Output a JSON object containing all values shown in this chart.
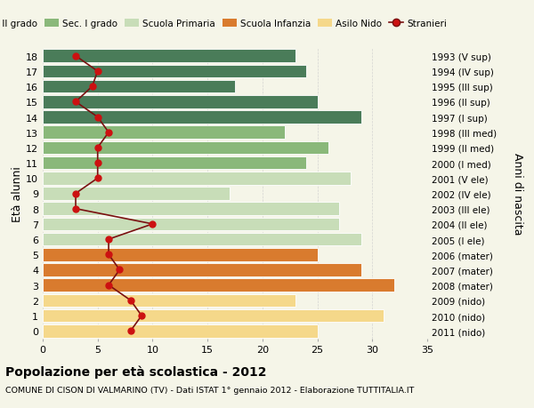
{
  "ages": [
    0,
    1,
    2,
    3,
    4,
    5,
    6,
    7,
    8,
    9,
    10,
    11,
    12,
    13,
    14,
    15,
    16,
    17,
    18
  ],
  "bar_values": [
    25,
    31,
    23,
    32,
    29,
    25,
    29,
    27,
    27,
    17,
    28,
    24,
    26,
    22,
    29,
    25,
    17.5,
    24,
    23
  ],
  "bar_colors": [
    "#f5d88a",
    "#f5d88a",
    "#f5d88a",
    "#d97b2e",
    "#d97b2e",
    "#d97b2e",
    "#c8ddb8",
    "#c8ddb8",
    "#c8ddb8",
    "#c8ddb8",
    "#c8ddb8",
    "#8ab87a",
    "#8ab87a",
    "#8ab87a",
    "#4a7c59",
    "#4a7c59",
    "#4a7c59",
    "#4a7c59",
    "#4a7c59"
  ],
  "right_labels": [
    "2011 (nido)",
    "2010 (nido)",
    "2009 (nido)",
    "2008 (mater)",
    "2007 (mater)",
    "2006 (mater)",
    "2005 (I ele)",
    "2004 (II ele)",
    "2003 (III ele)",
    "2002 (IV ele)",
    "2001 (V ele)",
    "2000 (I med)",
    "1999 (II med)",
    "1998 (III med)",
    "1997 (I sup)",
    "1996 (II sup)",
    "1995 (III sup)",
    "1994 (IV sup)",
    "1993 (V sup)"
  ],
  "stranieri_values": [
    8,
    9,
    8,
    6,
    7,
    6,
    6,
    10,
    3,
    3,
    5,
    5,
    5,
    6,
    5,
    3,
    4.5,
    5,
    3
  ],
  "legend_labels": [
    "Sec. II grado",
    "Sec. I grado",
    "Scuola Primaria",
    "Scuola Infanzia",
    "Asilo Nido",
    "Stranieri"
  ],
  "legend_colors": [
    "#4a7c59",
    "#8ab87a",
    "#c8ddb8",
    "#d97b2e",
    "#f5d88a",
    "#aa1122"
  ],
  "ylabel_left": "Età alunni",
  "ylabel_right": "Anni di nascita",
  "title": "Popolazione per età scolastica - 2012",
  "subtitle": "COMUNE DI CISON DI VALMARINO (TV) - Dati ISTAT 1° gennaio 2012 - Elaborazione TUTTITALIA.IT",
  "xlim": [
    0,
    35
  ],
  "background_color": "#f5f5e8",
  "plot_bg_color": "#f5f5e8",
  "grid_color": "#cccccc",
  "bar_edge_color": "#ffffff",
  "stranieri_line_color": "#7a1010",
  "stranieri_marker_color": "#cc1111"
}
